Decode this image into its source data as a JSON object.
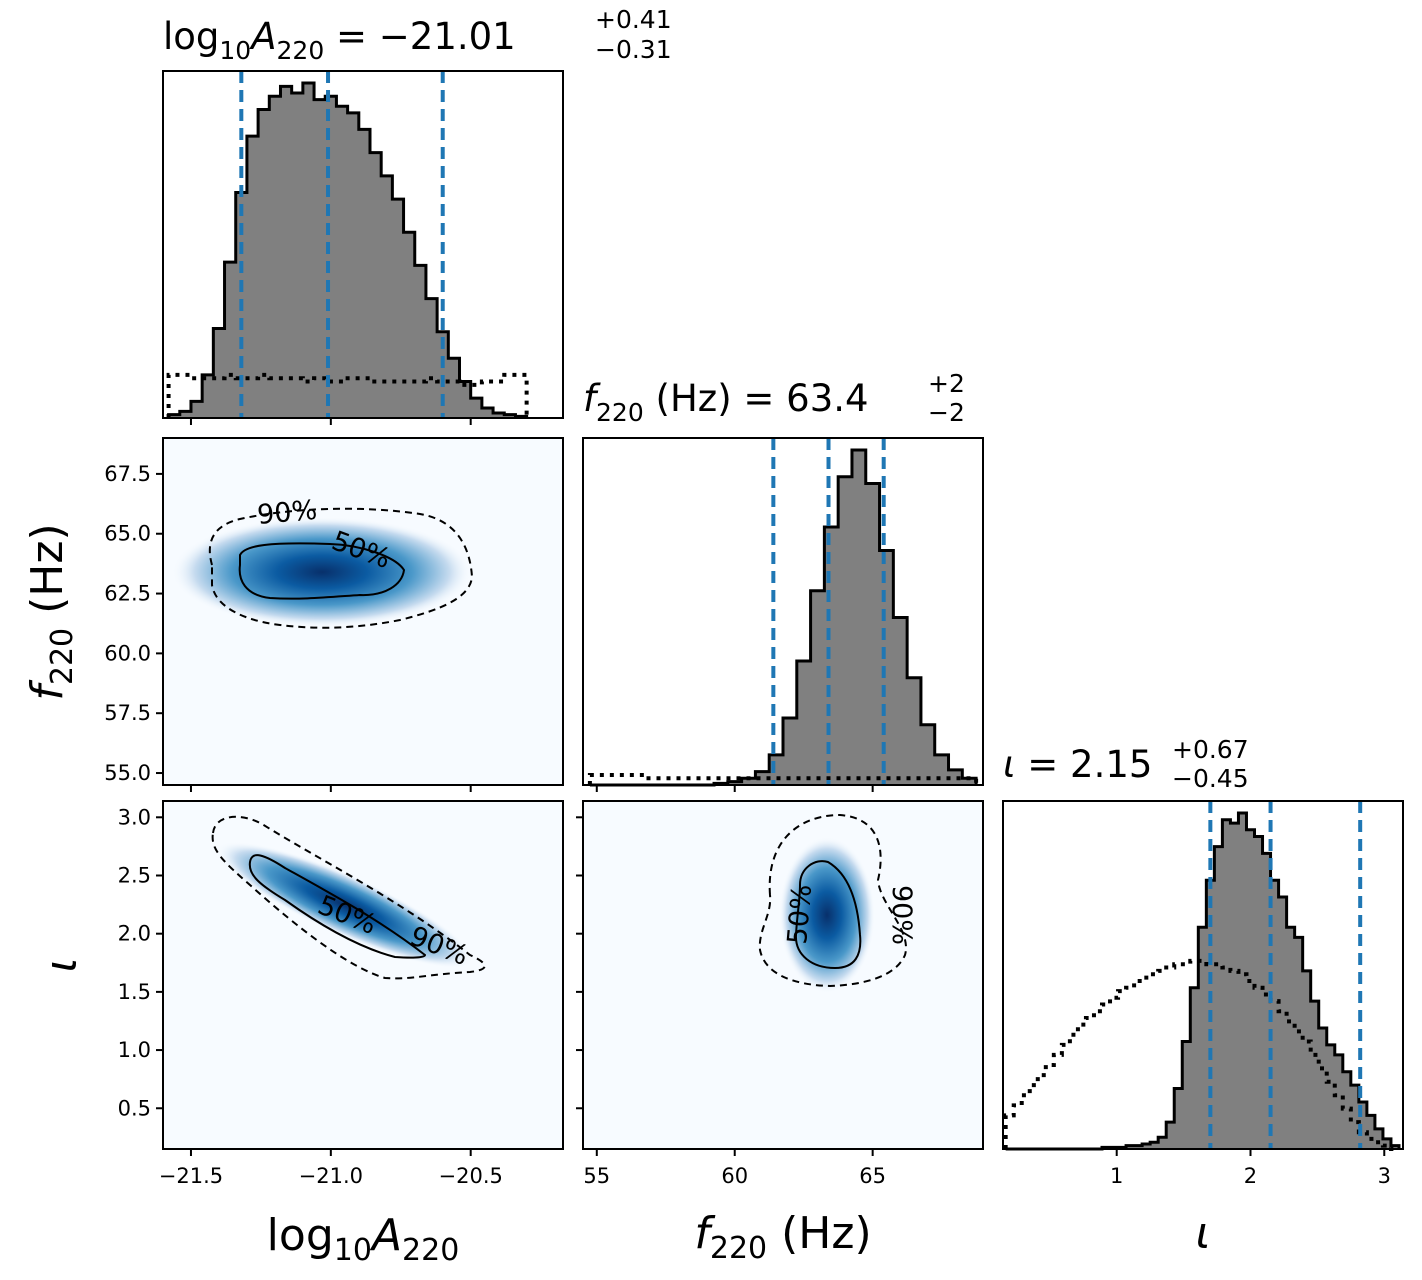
{
  "chart_data": {
    "type": "corner",
    "parameters": [
      {
        "key": "logA",
        "label_main": "log",
        "label_sub1": "10",
        "label_italic": "A",
        "label_sub2": "220",
        "range": [
          -21.6,
          -20.17
        ],
        "ticks": [
          -21.5,
          -21.0,
          -20.5
        ],
        "tick_labels": [
          "−21.5",
          "−21.0",
          "−20.5"
        ]
      },
      {
        "key": "f",
        "label_italic": "f",
        "label_sub": "220",
        "label_unit": " (Hz)",
        "range": [
          54.5,
          69.0
        ],
        "ticks_x": [
          55,
          60,
          65
        ],
        "tick_labels_x": [
          "55",
          "60",
          "65"
        ],
        "ticks_y": [
          55.0,
          57.5,
          60.0,
          62.5,
          65.0,
          67.5
        ],
        "tick_labels_y": [
          "55.0",
          "57.5",
          "60.0",
          "62.5",
          "65.0",
          "67.5"
        ]
      },
      {
        "key": "iota",
        "label_italic": "ι",
        "range_x": [
          0.15,
          3.14
        ],
        "ticks_x": [
          1,
          2,
          3
        ],
        "tick_labels_x": [
          "1",
          "2",
          "3"
        ],
        "range_y": [
          0.15,
          3.14
        ],
        "ticks_y": [
          0.5,
          1.0,
          1.5,
          2.0,
          2.5,
          3.0
        ],
        "tick_labels_y": [
          "0.5",
          "1.0",
          "1.5",
          "2.0",
          "2.5",
          "3.0"
        ]
      }
    ],
    "titles": [
      {
        "lhs_main": "log",
        "lhs_sub1": "10",
        "lhs_italic": "A",
        "lhs_sub2": "220",
        "eq": " = −21.01",
        "sup": "+0.41",
        "sub": "−0.31"
      },
      {
        "lhs_italic": "f",
        "lhs_sub": "220",
        "lhs_rest": " (Hz) = 63.4",
        "sup": "+2",
        "sub": "−2"
      },
      {
        "lhs_italic": "ι",
        "eq": " = 2.15",
        "sup": "+0.67",
        "sub": "−0.45"
      }
    ],
    "quantiles": {
      "logA": [
        -21.32,
        -21.01,
        -20.6
      ],
      "f": [
        61.4,
        63.4,
        65.4
      ],
      "iota": [
        1.7,
        2.15,
        2.82
      ]
    },
    "histograms": {
      "logA": {
        "x": [
          -21.56,
          -21.52,
          -21.48,
          -21.44,
          -21.4,
          -21.36,
          -21.32,
          -21.28,
          -21.24,
          -21.2,
          -21.16,
          -21.12,
          -21.08,
          -21.04,
          -21.0,
          -20.96,
          -20.92,
          -20.88,
          -20.84,
          -20.8,
          -20.76,
          -20.72,
          -20.68,
          -20.64,
          -20.6,
          -20.56,
          -20.52,
          -20.48,
          -20.44,
          -20.4,
          -20.36,
          -20.32
        ],
        "posterior": [
          0.01,
          0.02,
          0.05,
          0.13,
          0.27,
          0.47,
          0.68,
          0.85,
          0.93,
          0.97,
          1.0,
          0.98,
          1.01,
          0.96,
          0.97,
          0.94,
          0.92,
          0.87,
          0.8,
          0.73,
          0.66,
          0.56,
          0.46,
          0.36,
          0.26,
          0.18,
          0.11,
          0.06,
          0.03,
          0.015,
          0.01,
          0.005
        ],
        "prior": [
          0.13,
          0.13,
          0.12,
          0.12,
          0.12,
          0.13,
          0.12,
          0.12,
          0.13,
          0.12,
          0.12,
          0.12,
          0.11,
          0.12,
          0.11,
          0.11,
          0.12,
          0.12,
          0.11,
          0.11,
          0.11,
          0.11,
          0.11,
          0.12,
          0.11,
          0.11,
          0.1,
          0.1,
          0.11,
          0.11,
          0.13,
          0.13
        ]
      },
      "f": {
        "x": [
          55.0,
          55.5,
          56.0,
          56.5,
          57.0,
          57.5,
          58.0,
          58.5,
          59.0,
          59.5,
          60.0,
          60.5,
          61.0,
          61.5,
          62.0,
          62.5,
          63.0,
          63.5,
          64.0,
          64.5,
          65.0,
          65.5,
          66.0,
          66.5,
          67.0,
          67.5,
          68.0,
          68.5
        ],
        "posterior": [
          0.0,
          0.0,
          0.0,
          0.0,
          0.0,
          0.0,
          0.0,
          0.0,
          0.0,
          0.005,
          0.01,
          0.02,
          0.04,
          0.09,
          0.2,
          0.37,
          0.58,
          0.77,
          0.92,
          1.0,
          0.9,
          0.7,
          0.5,
          0.32,
          0.18,
          0.09,
          0.045,
          0.02
        ],
        "prior": [
          0.03,
          0.03,
          0.03,
          0.03,
          0.02,
          0.02,
          0.02,
          0.02,
          0.02,
          0.02,
          0.02,
          0.02,
          0.02,
          0.02,
          0.02,
          0.02,
          0.02,
          0.02,
          0.02,
          0.02,
          0.02,
          0.02,
          0.02,
          0.02,
          0.02,
          0.02,
          0.02,
          0.02
        ]
      },
      "iota": {
        "x": [
          0.2,
          0.26,
          0.32,
          0.38,
          0.44,
          0.5,
          0.56,
          0.62,
          0.68,
          0.74,
          0.8,
          0.86,
          0.92,
          0.98,
          1.04,
          1.1,
          1.16,
          1.22,
          1.28,
          1.34,
          1.4,
          1.46,
          1.52,
          1.58,
          1.64,
          1.7,
          1.76,
          1.82,
          1.88,
          1.94,
          2.0,
          2.06,
          2.12,
          2.18,
          2.24,
          2.3,
          2.36,
          2.42,
          2.48,
          2.54,
          2.6,
          2.66,
          2.72,
          2.78,
          2.84,
          2.9,
          2.96,
          3.02,
          3.08
        ],
        "posterior": [
          0.0,
          0.0,
          0.0,
          0.0,
          0.0,
          0.0,
          0.0,
          0.0,
          0.0,
          0.0,
          0.0,
          0.0,
          0.005,
          0.005,
          0.005,
          0.01,
          0.01,
          0.015,
          0.02,
          0.035,
          0.08,
          0.18,
          0.32,
          0.48,
          0.66,
          0.8,
          0.9,
          0.98,
          0.97,
          1.0,
          0.95,
          0.93,
          0.88,
          0.8,
          0.75,
          0.66,
          0.63,
          0.53,
          0.44,
          0.36,
          0.31,
          0.28,
          0.23,
          0.19,
          0.14,
          0.1,
          0.06,
          0.03,
          0.01
        ],
        "prior": [
          0.1,
          0.13,
          0.16,
          0.19,
          0.22,
          0.25,
          0.28,
          0.31,
          0.34,
          0.37,
          0.39,
          0.41,
          0.43,
          0.45,
          0.47,
          0.48,
          0.5,
          0.51,
          0.52,
          0.53,
          0.54,
          0.55,
          0.55,
          0.56,
          0.56,
          0.55,
          0.55,
          0.54,
          0.53,
          0.52,
          0.5,
          0.48,
          0.46,
          0.44,
          0.41,
          0.38,
          0.35,
          0.32,
          0.28,
          0.24,
          0.2,
          0.16,
          0.12,
          0.08,
          0.05,
          0.03,
          0.02,
          0.01,
          0.0
        ]
      }
    },
    "densities": [
      {
        "pair": [
          "logA",
          "f"
        ],
        "center": [
          -21.05,
          63.3
        ],
        "spread": [
          0.25,
          1.0
        ],
        "corr": 0.0,
        "contour_labels": [
          "90%",
          "50%"
        ]
      },
      {
        "pair": [
          "logA",
          "iota"
        ],
        "center": [
          -21.02,
          2.17
        ],
        "spread": [
          0.22,
          0.28
        ],
        "corr": -0.95,
        "contour_labels": [
          "50%",
          "90%"
        ]
      },
      {
        "pair": [
          "f",
          "iota"
        ],
        "center": [
          63.3,
          2.05
        ],
        "spread": [
          0.9,
          0.28
        ],
        "corr": 0.0,
        "contour_labels": [
          "50%",
          "90%"
        ]
      }
    ],
    "colors": {
      "quantile": "#1f77b4",
      "hist_fill": "#808080",
      "hist_edge": "#000000",
      "density_dark": "#08306b",
      "density_light": "#f7fbff"
    },
    "grid": false
  }
}
